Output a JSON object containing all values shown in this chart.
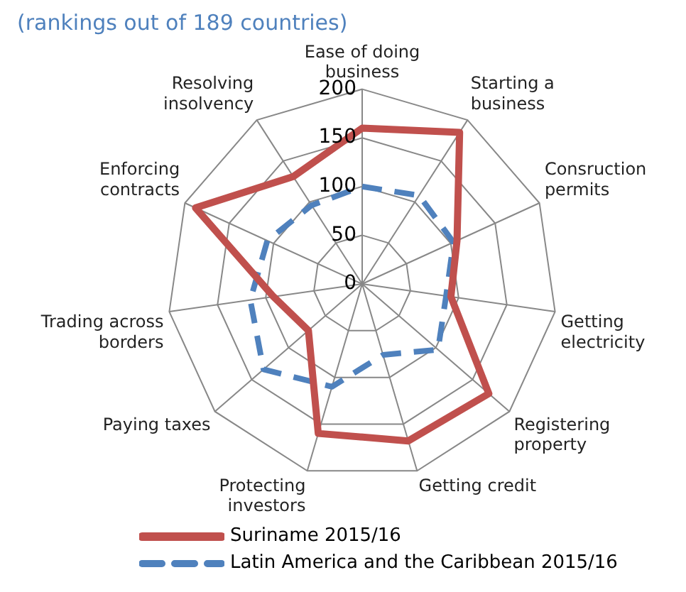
{
  "chart_data": {
    "type": "radar",
    "title": "(rankings out of 189 countries)",
    "categories": [
      "Ease of doing business",
      "Starting a business",
      "Consruction permits",
      "Getting electricity",
      "Registering property",
      "Getting credit",
      "Protecting investors",
      "Paying taxes",
      "Trading across borders",
      "Enforcing contracts",
      "Resolving insolvency"
    ],
    "series": [
      {
        "name": "Suriname 2015/16",
        "color": "#c0504d",
        "line_style": "solid",
        "values": [
          160,
          185,
          107,
          92,
          172,
          168,
          160,
          73,
          92,
          188,
          131
        ]
      },
      {
        "name": "Latin America and the Caribbean 2015/16",
        "color": "#4f81bd",
        "line_style": "dashed",
        "values": [
          100,
          108,
          103,
          87,
          103,
          76,
          110,
          134,
          116,
          107,
          96
        ]
      }
    ],
    "ylim": [
      0,
      200
    ],
    "yticks": [
      0,
      50,
      100,
      150,
      200
    ],
    "grid": true,
    "legend": "bottom",
    "marker": "none"
  }
}
